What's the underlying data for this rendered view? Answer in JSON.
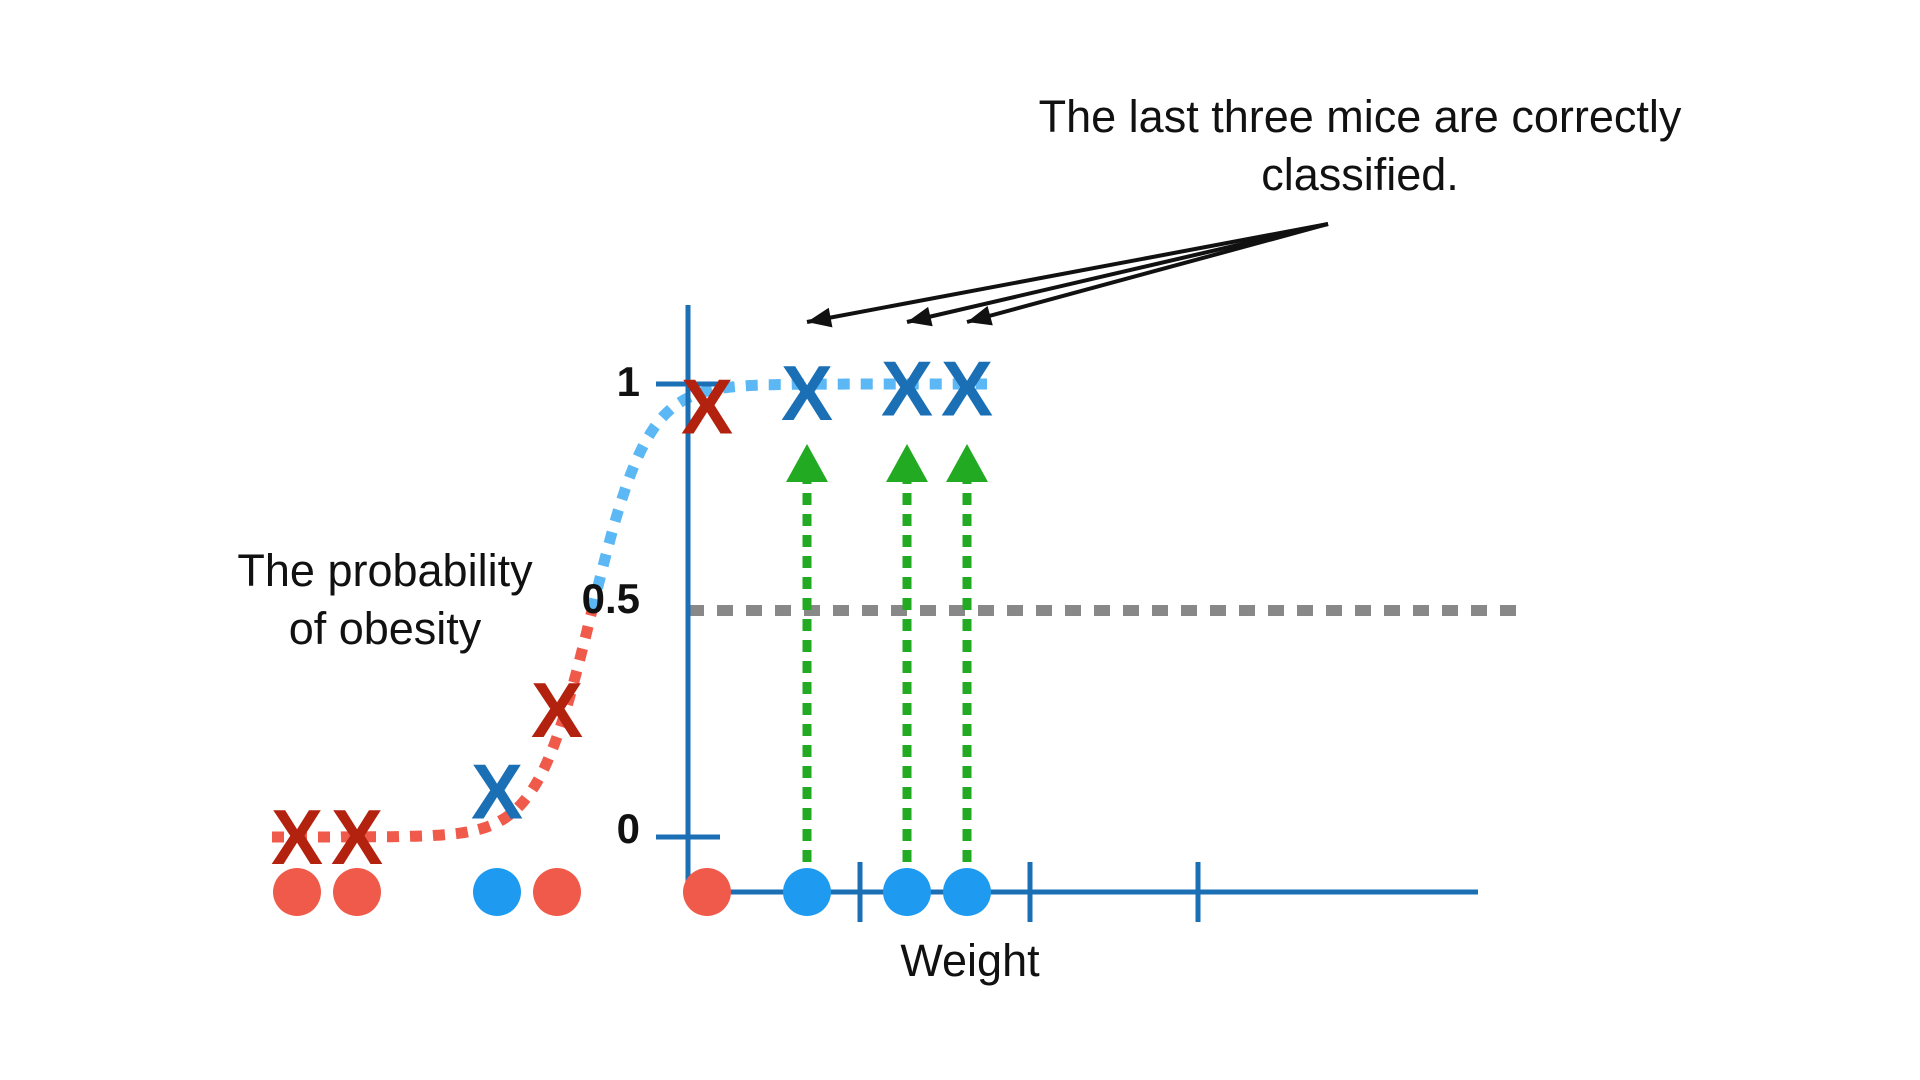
{
  "annotation": {
    "line1": "The last three mice are correctly",
    "line2": "classified."
  },
  "axes": {
    "y_label_line1": "The probability",
    "y_label_line2": "of obesity",
    "x_label": "Weight",
    "y_ticks": [
      "1",
      "0.5",
      "0"
    ]
  },
  "colors": {
    "axis": "#1a6fb5",
    "not_obese_point": "#f05a4a",
    "obese_point": "#1e9bf0",
    "curve_low": "#f05a4a",
    "curve_high": "#5bb8f5",
    "x_red": "#b3210f",
    "x_blue": "#1a6fb5",
    "threshold": "#888888",
    "arrow": "#22aa22",
    "pointer": "#111111"
  },
  "chart_data": {
    "type": "scatter",
    "y_range": [
      0,
      1
    ],
    "threshold": 0.5,
    "mice": [
      {
        "weight": 1.0,
        "obese": false,
        "predicted": 0.0,
        "correct": false
      },
      {
        "weight": 1.6,
        "obese": false,
        "predicted": 0.0,
        "correct": false
      },
      {
        "weight": 3.0,
        "obese": true,
        "predicted": 0.1,
        "correct": false
      },
      {
        "weight": 3.6,
        "obese": false,
        "predicted": 0.28,
        "correct": false
      },
      {
        "weight": 5.1,
        "obese": false,
        "predicted": 0.95,
        "correct": false
      },
      {
        "weight": 6.1,
        "obese": true,
        "predicted": 0.98,
        "correct": true
      },
      {
        "weight": 7.1,
        "obese": true,
        "predicted": 0.99,
        "correct": true
      },
      {
        "weight": 7.7,
        "obese": true,
        "predicted": 0.99,
        "correct": true
      }
    ]
  }
}
